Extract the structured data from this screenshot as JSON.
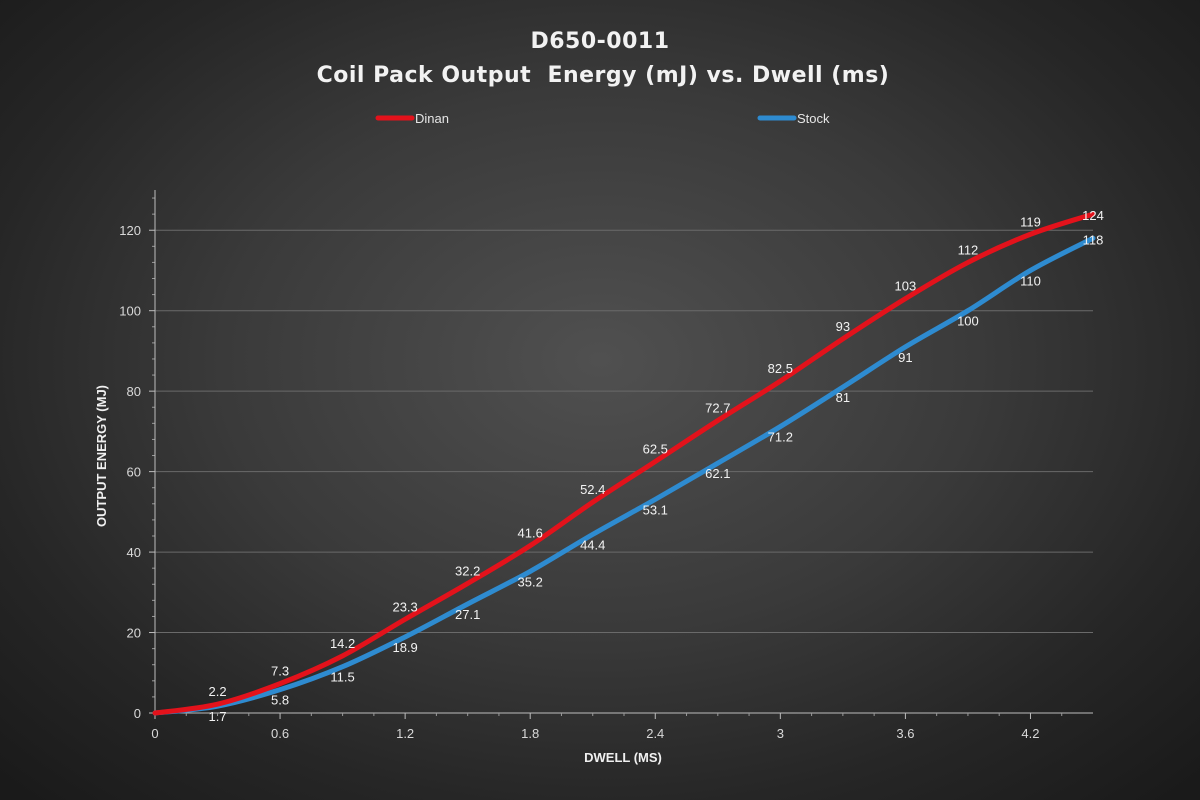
{
  "chart_data": {
    "type": "line",
    "title": "D650-0011",
    "subtitle": "Coil Pack Output  Energy (mJ) vs. Dwell (ms)",
    "xlabel": "DWELL (MS)",
    "ylabel": "OUTPUT ENERGY (MJ)",
    "xlim": [
      0,
      4.5
    ],
    "ylim": [
      0,
      130
    ],
    "xticks": [
      "0",
      "0.6",
      "1.2",
      "1.8",
      "2.4",
      "3",
      "3.6",
      "4.2"
    ],
    "yticks": [
      "0",
      "20",
      "40",
      "60",
      "80",
      "100",
      "120"
    ],
    "grid": "horizontal",
    "legend_position": "top",
    "series": [
      {
        "name": "Dinan",
        "color": "#e3121b",
        "x": [
          0,
          0.3,
          0.6,
          0.9,
          1.2,
          1.5,
          1.8,
          2.1,
          2.4,
          2.7,
          3.0,
          3.3,
          3.6,
          3.9,
          4.2,
          4.5
        ],
        "values": [
          0,
          2.2,
          7.3,
          14.2,
          23.3,
          32.2,
          41.6,
          52.4,
          62.5,
          72.7,
          82.5,
          93,
          103,
          112,
          119,
          124
        ],
        "labels": [
          "",
          "2.2",
          "7.3",
          "14.2",
          "23.3",
          "32.2",
          "41.6",
          "52.4",
          "62.5",
          "72.7",
          "82.5",
          "93",
          "103",
          "112",
          "119",
          "124"
        ]
      },
      {
        "name": "Stock",
        "color": "#2e8bd0",
        "x": [
          0,
          0.3,
          0.6,
          0.9,
          1.2,
          1.5,
          1.8,
          2.1,
          2.4,
          2.7,
          3.0,
          3.3,
          3.6,
          3.9,
          4.2,
          4.5
        ],
        "values": [
          0,
          1.7,
          5.8,
          11.5,
          18.9,
          27.1,
          35.2,
          44.4,
          53.1,
          62.1,
          71.2,
          81,
          91,
          100,
          110,
          118
        ],
        "labels": [
          "",
          "1.7",
          "5.8",
          "11.5",
          "18.9",
          "27.1",
          "35.2",
          "44.4",
          "53.1",
          "62.1",
          "71.2",
          "81",
          "91",
          "100",
          "110",
          "118"
        ]
      }
    ]
  }
}
